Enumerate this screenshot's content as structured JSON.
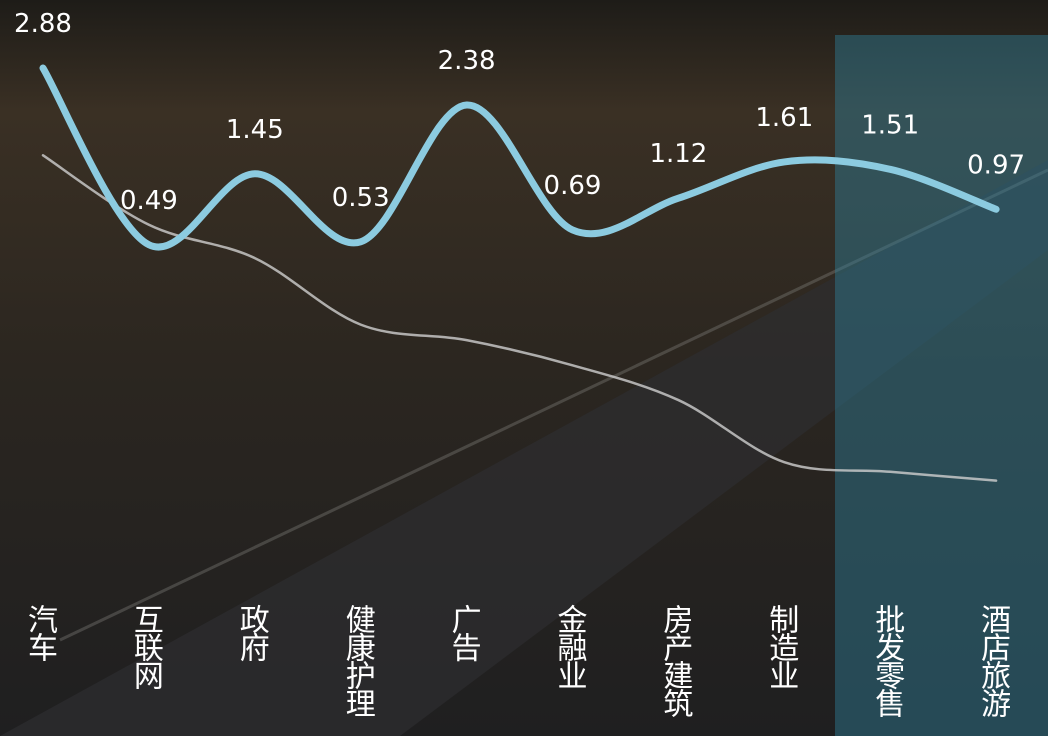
{
  "chart_data": {
    "type": "line",
    "categories": [
      "汽车",
      "互联网",
      "政府",
      "健康护理",
      "广告",
      "金融业",
      "房产建筑",
      "制造业",
      "批发零售",
      "酒店旅游"
    ],
    "series": [
      {
        "color": "#cfcfcf",
        "values": [
          1.7,
          0.76,
          0.31,
          -0.59,
          -0.8,
          -1.14,
          -1.61,
          -2.45,
          -2.58,
          -2.7
        ]
      },
      {
        "color": "#8ccbe0",
        "values": [
          2.88,
          0.49,
          1.45,
          0.53,
          2.38,
          0.69,
          1.12,
          1.61,
          1.51,
          0.97
        ],
        "data_labels": true
      }
    ],
    "ylim": [
      -3.8,
      3.8
    ]
  }
}
